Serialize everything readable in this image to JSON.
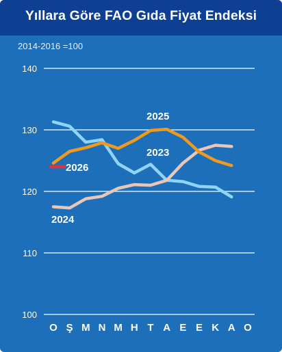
{
  "header": {
    "title": "Yıllara Göre FAO Gıda Fiyat Endeksi"
  },
  "chart_data": {
    "type": "line",
    "subtitle": "2014-2016 =100",
    "categories": [
      "O",
      "Ş",
      "M",
      "N",
      "M",
      "H",
      "T",
      "A",
      "E",
      "E",
      "K",
      "A",
      "O"
    ],
    "ylim": [
      100,
      140
    ],
    "yticks": [
      100,
      110,
      120,
      130,
      140
    ],
    "grid": true,
    "series": [
      {
        "name": "2023",
        "color": "#8fd4f7",
        "values": [
          131.3,
          130.6,
          128.0,
          128.4,
          124.5,
          123.0,
          124.4,
          121.8,
          121.6,
          120.8,
          120.7,
          119.1,
          null
        ]
      },
      {
        "name": "2024",
        "color": "#e8c7b8",
        "values": [
          117.5,
          117.3,
          118.8,
          119.2,
          120.5,
          121.1,
          121.0,
          121.8,
          124.6,
          126.7,
          127.5,
          127.3,
          null
        ]
      },
      {
        "name": "2025",
        "color": "#ef9a1e",
        "values": [
          124.6,
          126.5,
          127.1,
          127.9,
          127.0,
          128.3,
          129.9,
          130.1,
          128.8,
          126.4,
          125.0,
          124.2,
          null
        ]
      },
      {
        "name": "2026",
        "color": "#d9363e",
        "values": [
          124.0,
          null,
          null,
          null,
          null,
          null,
          null,
          null,
          null,
          null,
          null,
          null,
          null
        ]
      }
    ]
  }
}
